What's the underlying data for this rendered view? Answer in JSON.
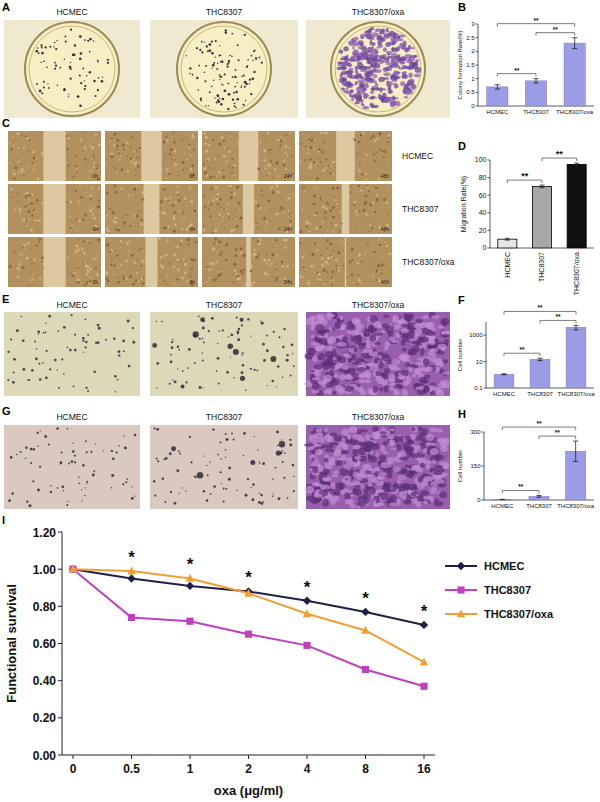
{
  "image_panels": [
    {
      "panel": "A",
      "labels": [
        "HCMEC",
        "THC8307",
        "THC8307/oxa"
      ]
    },
    {
      "panel": "C",
      "row_labels": [
        "HCMEC",
        "THC8307",
        "THC8307/oxa"
      ],
      "time_labels": [
        "0h",
        "6h",
        "24h",
        "48h"
      ]
    },
    {
      "panel": "E",
      "labels": [
        "HCMEC",
        "THC8307",
        "THC8307/oxa"
      ]
    },
    {
      "panel": "G",
      "labels": [
        "HCMEC",
        "THC8307",
        "THC8307/oxa"
      ]
    }
  ],
  "chart_data": [
    {
      "panel": "B",
      "type": "bar",
      "y_label": "Colony formation Rate(%)",
      "categories": [
        "HCMEC",
        "THC8307",
        "THC8307/oxa"
      ],
      "values": [
        0.7,
        0.92,
        2.3
      ],
      "errors": [
        0.08,
        0.08,
        0.2
      ],
      "color": "#9b9be6",
      "ylim": [
        0,
        3
      ],
      "yticks": [
        0,
        0.5,
        1,
        1.5,
        2,
        2.5,
        3
      ],
      "annotations": [
        {
          "from": 0,
          "to": 1,
          "text": "**"
        },
        {
          "from": 1,
          "to": 2,
          "text": "**"
        },
        {
          "from": 0,
          "to": 2,
          "text": "**"
        }
      ]
    },
    {
      "panel": "D",
      "type": "bar",
      "y_label": "Migration Rate(%)",
      "categories": [
        "HCMEC",
        "THC8307",
        "THC8307/oxa"
      ],
      "values": [
        10,
        70,
        95
      ],
      "errors": [
        1,
        1.5,
        1.5
      ],
      "colors": [
        "#e6e6e6",
        "#a8a8a8",
        "#111111"
      ],
      "ylim": [
        0,
        100
      ],
      "yticks": [
        0,
        20,
        40,
        60,
        80,
        100
      ],
      "annotations": [
        {
          "from": 0,
          "to": 1,
          "text": "**"
        },
        {
          "from": 1,
          "to": 2,
          "text": "**"
        }
      ]
    },
    {
      "panel": "F",
      "type": "bar",
      "y_label": "Cell number",
      "log": "y",
      "categories": [
        "HCMEC",
        "THC8307",
        "THC8307/oxa"
      ],
      "values": [
        1.1,
        15,
        4000
      ],
      "errors": [
        0.1,
        3,
        1500
      ],
      "color": "#9b9be6",
      "ylim": [
        0.1,
        10000
      ],
      "yticks": [
        0.1,
        10,
        1000
      ],
      "annotations": [
        {
          "from": 0,
          "to": 1,
          "text": "**"
        },
        {
          "from": 1,
          "to": 2,
          "text": "**"
        },
        {
          "from": 0,
          "to": 2,
          "text": "**"
        }
      ]
    },
    {
      "panel": "H",
      "type": "bar",
      "y_label": "Cell number",
      "categories": [
        "HCMEC",
        "THC8307",
        "THC8307/oxa"
      ],
      "values": [
        2,
        16,
        215
      ],
      "errors": [
        1,
        4,
        45
      ],
      "color": "#9b9be6",
      "ylim": [
        0,
        300
      ],
      "yticks": [
        0,
        150,
        300
      ],
      "annotations": [
        {
          "from": 0,
          "to": 1,
          "text": "**"
        },
        {
          "from": 1,
          "to": 2,
          "text": "**"
        },
        {
          "from": 0,
          "to": 2,
          "text": "**"
        }
      ]
    },
    {
      "panel": "I",
      "type": "line",
      "x_label": "oxa (μg/ml)",
      "y_label": "Functional survival",
      "categories": [
        "0",
        "0.5",
        "1",
        "2",
        "4",
        "8",
        "16"
      ],
      "ylim": [
        0,
        1.2
      ],
      "yticks": [
        {
          "value": 0,
          "label": "0.00"
        },
        {
          "value": 0.2,
          "label": "0.20"
        },
        {
          "value": 0.4,
          "label": "0.40"
        },
        {
          "value": 0.6,
          "label": "0.60"
        },
        {
          "value": 0.8,
          "label": "0.80"
        },
        {
          "value": 1.0,
          "label": "1.00"
        },
        {
          "value": 1.2,
          "label": "1.20"
        }
      ],
      "legend": "right",
      "series": [
        {
          "name": "HCMEC",
          "color": "#1f1f4a",
          "marker": "diamond",
          "values": [
            1.0,
            0.95,
            0.91,
            0.88,
            0.83,
            0.77,
            0.7
          ]
        },
        {
          "name": "THC8307",
          "color": "#c13fbf",
          "marker": "square",
          "values": [
            1.0,
            0.74,
            0.72,
            0.65,
            0.59,
            0.46,
            0.37
          ]
        },
        {
          "name": "THC8307/oxa",
          "color": "#f0a033",
          "marker": "triangle",
          "values": [
            1.0,
            0.99,
            0.95,
            0.87,
            0.76,
            0.67,
            0.5
          ]
        }
      ],
      "annotations": [
        {
          "index": 1,
          "text": "*"
        },
        {
          "index": 2,
          "text": "*"
        },
        {
          "index": 3,
          "text": "*"
        },
        {
          "index": 4,
          "text": "*"
        },
        {
          "index": 5,
          "text": "*"
        },
        {
          "index": 6,
          "text": "*"
        }
      ]
    }
  ]
}
